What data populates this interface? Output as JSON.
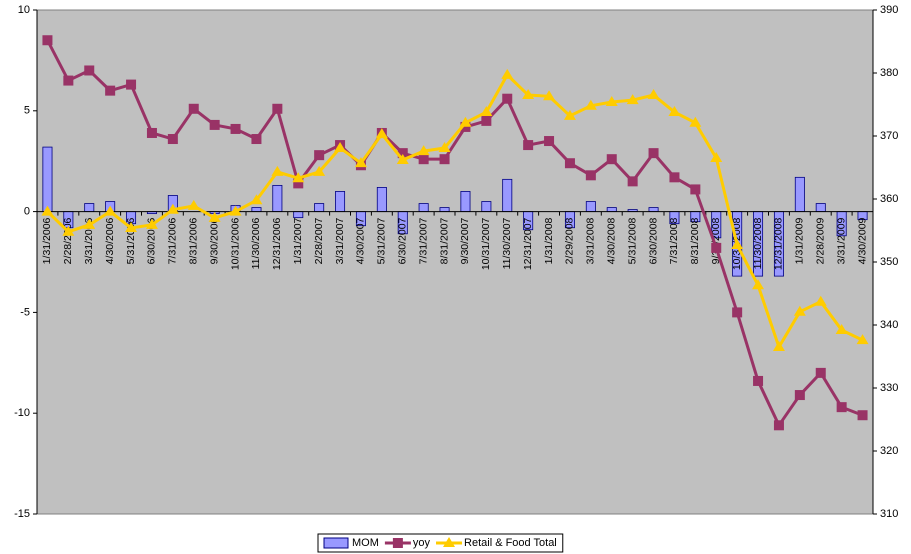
{
  "chart_data": {
    "type": "combo",
    "categories": [
      "1/31/2006",
      "2/28/2006",
      "3/31/2006",
      "4/30/2006",
      "5/31/2006",
      "6/30/2006",
      "7/31/2006",
      "8/31/2006",
      "9/30/2006",
      "10/31/2006",
      "11/30/2006",
      "12/31/2006",
      "1/31/2007",
      "2/28/2007",
      "3/31/2007",
      "4/30/2007",
      "5/31/2007",
      "6/30/2007",
      "7/31/2007",
      "8/31/2007",
      "9/30/2007",
      "10/31/2007",
      "11/30/2007",
      "12/31/2007",
      "1/31/2008",
      "2/29/2008",
      "3/31/2008",
      "4/30/2008",
      "5/31/2008",
      "6/30/2008",
      "7/31/2008",
      "8/31/2008",
      "9/30/2008",
      "10/31/2008",
      "11/30/2008",
      "12/31/2008",
      "1/31/2009",
      "2/28/2009",
      "3/31/2009",
      "4/30/2009"
    ],
    "series": [
      {
        "name": "MOM",
        "type": "bar",
        "color": "#9999ff",
        "axis": "y",
        "values": [
          3.2,
          -0.8,
          0.4,
          0.5,
          -0.6,
          -0.1,
          0.8,
          0.0,
          -0.1,
          0.3,
          0.2,
          1.3,
          -0.3,
          0.4,
          1.0,
          -0.7,
          1.2,
          -1.1,
          0.4,
          0.2,
          1.0,
          0.5,
          1.6,
          -0.9,
          0.0,
          -0.8,
          0.5,
          0.2,
          0.1,
          0.2,
          -0.6,
          -0.5,
          -1.3,
          -3.2,
          -3.2,
          -3.2,
          1.7,
          0.4,
          -1.2,
          -0.4
        ]
      },
      {
        "name": "yoy",
        "type": "line",
        "marker": "square",
        "color": "#993366",
        "axis": "y",
        "values": [
          8.5,
          6.5,
          7.0,
          6.0,
          6.3,
          3.9,
          3.6,
          5.1,
          4.3,
          4.1,
          3.6,
          5.1,
          1.4,
          2.8,
          3.3,
          2.3,
          3.9,
          2.9,
          2.6,
          2.6,
          4.2,
          4.5,
          5.6,
          3.3,
          3.5,
          2.4,
          1.8,
          2.6,
          1.5,
          2.9,
          1.7,
          1.1,
          -1.8,
          -5.0,
          -8.4,
          -10.6,
          -9.1,
          -8.0,
          -9.7,
          -10.1
        ]
      },
      {
        "name": "Retail & Food Total",
        "type": "line",
        "marker": "triangle",
        "color": "#ffcc00",
        "axis": "y2",
        "values": [
          358,
          354.8,
          355.9,
          358,
          355.4,
          355.9,
          358.3,
          358.9,
          357,
          358,
          359.8,
          364.3,
          363.3,
          364.3,
          368.1,
          365.7,
          370.3,
          366.2,
          367.6,
          368.1,
          372.1,
          373.8,
          379.7,
          376.5,
          376.3,
          373.2,
          374.8,
          375.4,
          375.7,
          376.5,
          373.8,
          372.1,
          366.5,
          352.7,
          346.3,
          336.5,
          342.1,
          343.7,
          339.2,
          337.6
        ]
      }
    ],
    "ylim": [
      -15,
      10
    ],
    "yticks": [
      -15,
      -10,
      -5,
      0,
      5,
      10
    ],
    "y2lim": [
      310,
      390
    ],
    "y2ticks": [
      310,
      320,
      330,
      340,
      350,
      360,
      370,
      380,
      390
    ],
    "legend": "bottom",
    "grid": false,
    "plot_background": "#c0c0c0"
  }
}
